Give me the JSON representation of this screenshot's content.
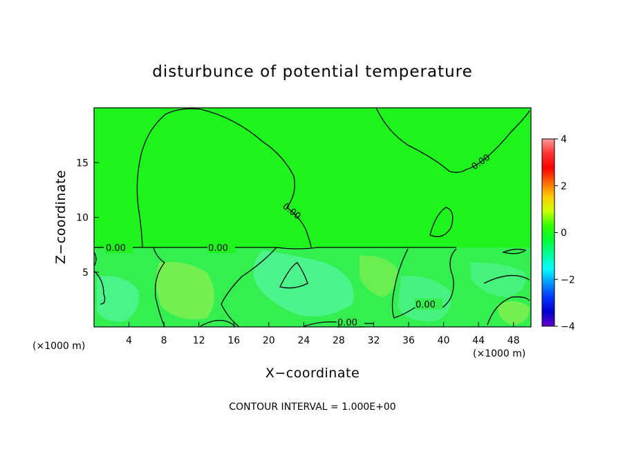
{
  "chart_data": {
    "type": "heatmap",
    "title": "disturbunce of potential temperature",
    "xlabel": "X−coordinate",
    "ylabel": "Z−coordinate",
    "x_unit_label": "(×1000 m)",
    "xlim": [
      0,
      50
    ],
    "ylim": [
      0,
      20
    ],
    "x_ticks": [
      "4",
      "8",
      "12",
      "16",
      "20",
      "24",
      "28",
      "32",
      "36",
      "40",
      "44",
      "48"
    ],
    "y_ticks": [
      "5",
      "10",
      "15"
    ],
    "colorbar": {
      "range": [
        -4,
        4
      ],
      "ticks": [
        "4",
        "2",
        "0",
        "−2",
        "−4"
      ],
      "colors": [
        "#ff9999",
        "#ff3333",
        "#ff0000",
        "#ff6600",
        "#ffcc00",
        "#ccff00",
        "#33ff00",
        "#00ff33",
        "#00ff99",
        "#00ffff",
        "#0099ff",
        "#0033ff",
        "#0000cc",
        "#6600cc"
      ]
    },
    "contour_interval_text": "CONTOUR INTERVAL = 1.000E+00",
    "contour_labels": [
      "0.00",
      "0.00",
      "0.00",
      "0.00",
      "0.00",
      "0.00"
    ],
    "grid": false,
    "colors": {
      "field_dominant": "#22f022",
      "field_upper": "#1df51d",
      "field_lower_cool": "#55f5a0",
      "field_lower_warm": "#8ef050",
      "contour": "#000000"
    }
  }
}
